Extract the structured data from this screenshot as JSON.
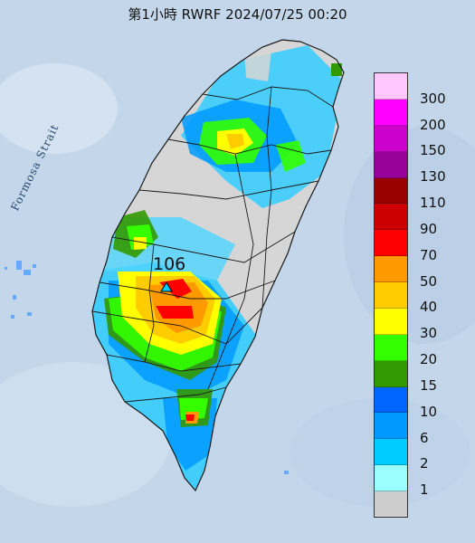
{
  "title": "第1小時  RWRF 2024/07/25 00:20",
  "sea_label": "Formosa Strait",
  "max_value_label": "106",
  "legend": {
    "labels": [
      "300",
      "200",
      "150",
      "130",
      "110",
      "90",
      "70",
      "50",
      "40",
      "30",
      "20",
      "15",
      "10",
      "6",
      "2",
      "1"
    ],
    "colors": [
      "#ffc6ff",
      "#ff00ff",
      "#cc00cc",
      "#990099",
      "#990000",
      "#cc0000",
      "#ff0000",
      "#ff9900",
      "#ffcc00",
      "#ffff00",
      "#33ff00",
      "#339900",
      "#0066ff",
      "#0099ff",
      "#00ccff",
      "#99ffff",
      "#cccccc"
    ]
  },
  "colors": {
    "sea": "#c4d7ea",
    "land_base": "#d6d6d6"
  }
}
